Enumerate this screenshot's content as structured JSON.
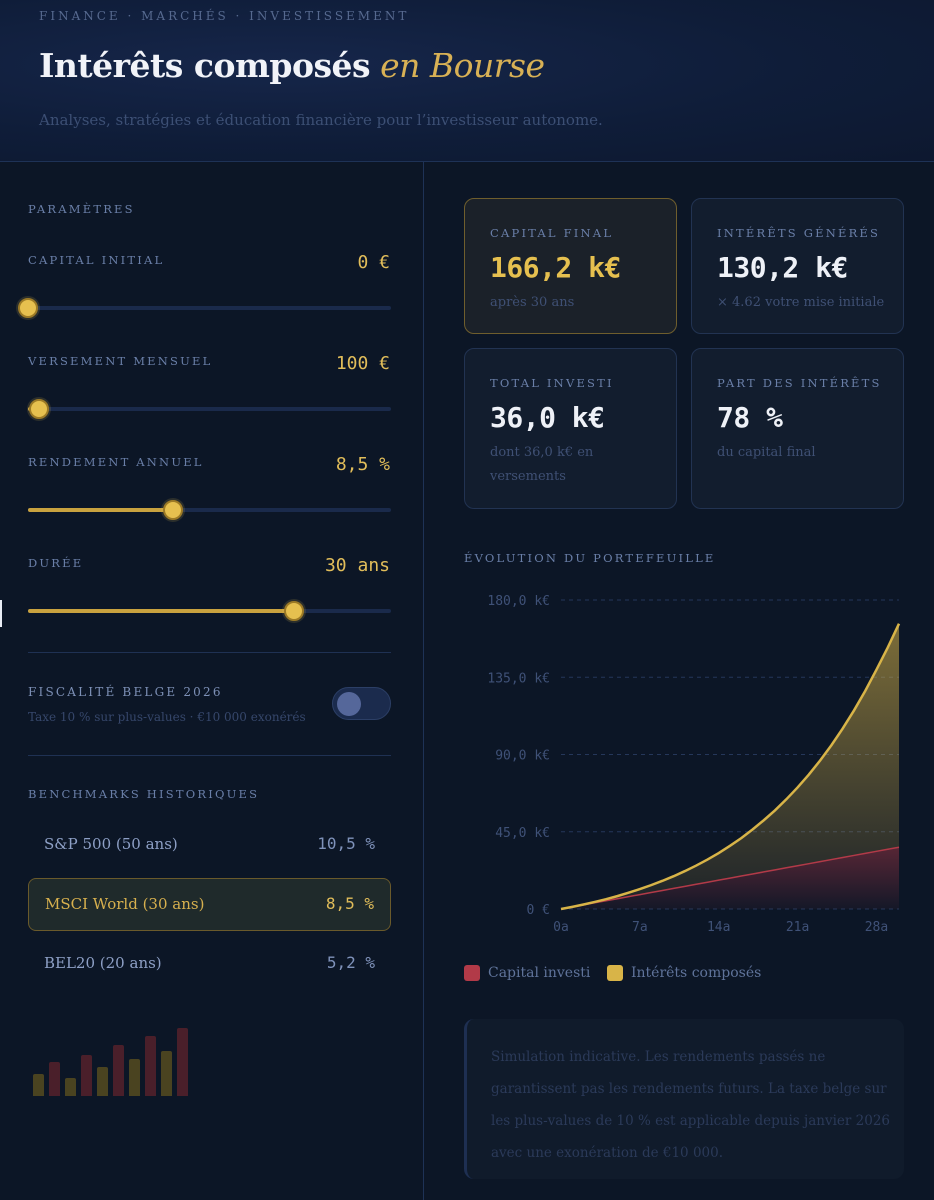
{
  "header": {
    "kicker": "FINANCE · MARCHÉS · INVESTISSEMENT",
    "title_main": "Intérêts composés",
    "title_accent": "en Bourse",
    "subtitle": "Analyses, stratégies et éducation financière pour l’investisseur autonome."
  },
  "params": {
    "section_label": "PARAMÈTRES",
    "capital": {
      "label": "CAPITAL INITIAL",
      "value": "0 €",
      "fraction": 0.0
    },
    "monthly": {
      "label": "VERSEMENT MENSUEL",
      "value": "100 €",
      "fraction": 0.03
    },
    "rate": {
      "label": "RENDEMENT ANNUEL",
      "value": "8,5 %",
      "fraction": 0.4
    },
    "duration": {
      "label": "DURÉE",
      "value": "30 ans",
      "fraction": 0.733
    },
    "tax": {
      "label": "FISCALITÉ BELGE 2026",
      "note": "Taxe 10 % sur plus-values · €10 000 exonérés",
      "enabled": false
    }
  },
  "benchmarks": {
    "section_label": "BENCHMARKS HISTORIQUES",
    "items": [
      {
        "name": "S&P 500 (50 ans)",
        "value": "10,5 %",
        "active": false
      },
      {
        "name": "MSCI World (30 ans)",
        "value": "8,5 %",
        "active": true
      },
      {
        "name": "BEL20 (20 ans)",
        "value": "5,2 %",
        "active": false
      }
    ],
    "mini_bars": [
      {
        "level": 0.33,
        "color": "#4a4320"
      },
      {
        "level": 0.5,
        "color": "#4a1f2a"
      },
      {
        "level": 0.27,
        "color": "#4a4320"
      },
      {
        "level": 0.6,
        "color": "#4a1f2a"
      },
      {
        "level": 0.42,
        "color": "#4a4320"
      },
      {
        "level": 0.75,
        "color": "#4a1f2a"
      },
      {
        "level": 0.55,
        "color": "#4a4320"
      },
      {
        "level": 0.88,
        "color": "#4a1f2a"
      },
      {
        "level": 0.66,
        "color": "#4a4320"
      },
      {
        "level": 1.0,
        "color": "#4a1f2a"
      }
    ]
  },
  "cards": {
    "final": {
      "label": "CAPITAL FINAL",
      "value": "166,2 k€",
      "sub": "après 30 ans"
    },
    "interest": {
      "label": "INTÉRÊTS GÉNÉRÉS",
      "value": "130,2 k€",
      "sub": "× 4.62 votre mise initiale"
    },
    "invested": {
      "label": "TOTAL INVESTI",
      "value": "36,0 k€",
      "sub": "dont 36,0 k€ en versements"
    },
    "share": {
      "label": "PART DES INTÉRÊTS",
      "value": "78 %",
      "sub": "du capital final"
    }
  },
  "chart_section_label": "ÉVOLUTION DU PORTEFEUILLE",
  "chart_data": {
    "type": "area",
    "title": "ÉVOLUTION DU PORTEFEUILLE",
    "x": [
      0,
      1,
      2,
      3,
      4,
      5,
      6,
      7,
      8,
      9,
      10,
      11,
      12,
      13,
      14,
      15,
      16,
      17,
      18,
      19,
      20,
      21,
      22,
      23,
      24,
      25,
      26,
      27,
      28,
      29,
      30
    ],
    "x_ticks": [
      0,
      7,
      14,
      21,
      28
    ],
    "x_tick_labels": [
      "0a",
      "7a",
      "14a",
      "21a",
      "28a"
    ],
    "y_ticks": [
      0,
      45,
      90,
      135,
      180
    ],
    "y_tick_labels": [
      "0 €",
      "45,0 k€",
      "90,0 k€",
      "135,0 k€",
      "180,0 k€"
    ],
    "ylim": [
      0,
      180
    ],
    "xlim": [
      0,
      30
    ],
    "y_unit": "k€",
    "grid": true,
    "legend_position": "bottom-left",
    "series": [
      {
        "name": "Capital investi",
        "color": "#b23a48",
        "values": [
          0,
          1.2,
          2.4,
          3.6,
          4.8,
          6.0,
          7.2,
          8.4,
          9.6,
          10.8,
          12.0,
          13.2,
          14.4,
          15.6,
          16.8,
          18.0,
          19.2,
          20.4,
          21.6,
          22.8,
          24.0,
          25.2,
          26.4,
          27.6,
          28.8,
          30.0,
          31.2,
          32.4,
          33.6,
          34.8,
          36.0
        ]
      },
      {
        "name": "Intérêts composés",
        "color": "#d8b448",
        "values": [
          0,
          1.25,
          2.6,
          4.1,
          5.7,
          7.5,
          9.5,
          11.6,
          13.9,
          16.4,
          19.1,
          22.1,
          25.3,
          28.8,
          32.6,
          36.8,
          41.3,
          46.3,
          51.7,
          57.5,
          63.9,
          70.8,
          78.3,
          86.5,
          95.4,
          105.1,
          115.6,
          127.0,
          139.4,
          152.3,
          166.2
        ]
      }
    ]
  },
  "legend": {
    "invested": "Capital investi",
    "interest": "Intérêts composés"
  },
  "colors": {
    "accent": "#e1bd5a",
    "invested": "#b23a48",
    "background": "#0c1626"
  },
  "disclaimer": "Simulation indicative. Les rendements passés ne garantissent pas les rendements futurs. La taxe belge sur les plus-values de 10 % est applicable depuis janvier 2026 avec une exonération de €10 000."
}
